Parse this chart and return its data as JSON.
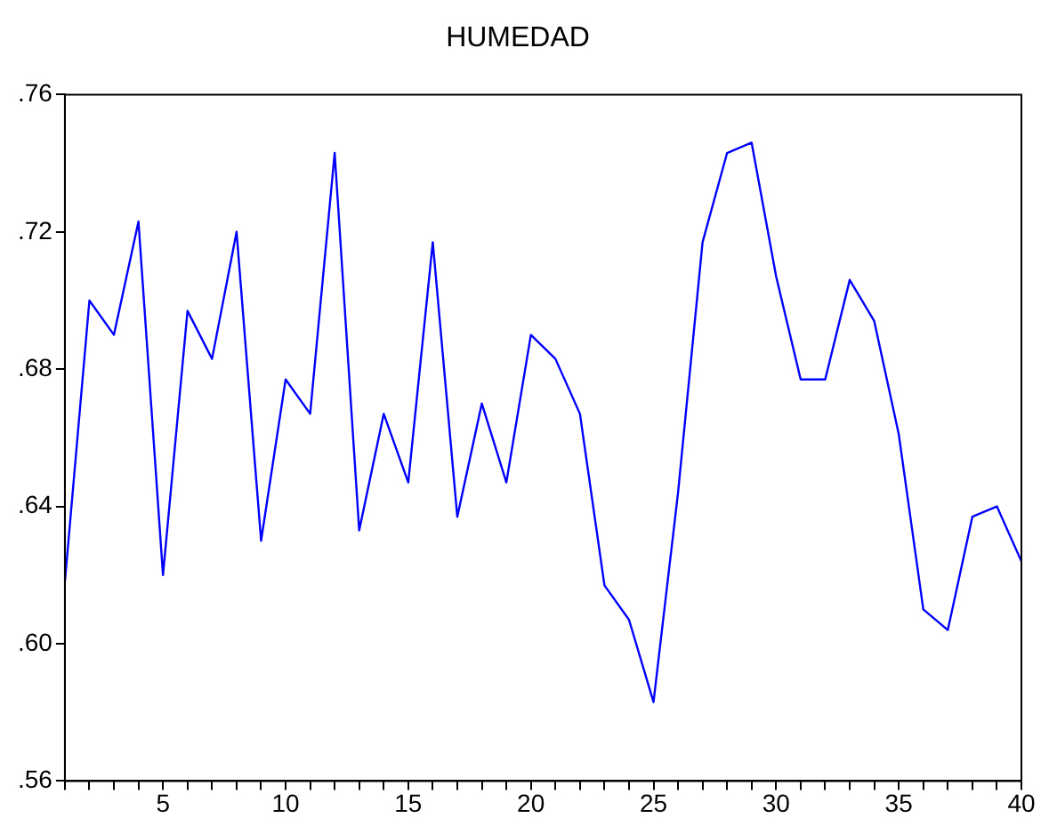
{
  "chart_data": {
    "type": "line",
    "title": "HUMEDAD",
    "x": [
      1,
      2,
      3,
      4,
      5,
      6,
      7,
      8,
      9,
      10,
      11,
      12,
      13,
      14,
      15,
      16,
      17,
      18,
      19,
      20,
      21,
      22,
      23,
      24,
      25,
      26,
      27,
      28,
      29,
      30,
      31,
      32,
      33,
      34,
      35,
      36,
      37,
      38,
      39,
      40
    ],
    "series": [
      {
        "color": "#0000ff",
        "values": [
          0.618,
          0.7,
          0.69,
          0.723,
          0.62,
          0.697,
          0.683,
          0.72,
          0.63,
          0.677,
          0.667,
          0.743,
          0.633,
          0.667,
          0.647,
          0.717,
          0.637,
          0.67,
          0.647,
          0.69,
          0.683,
          0.667,
          0.617,
          0.607,
          0.583,
          0.644,
          0.717,
          0.743,
          0.746,
          0.707,
          0.677,
          0.677,
          0.706,
          0.694,
          0.661,
          0.61,
          0.604,
          0.637,
          0.64,
          0.624
        ]
      }
    ],
    "xlim": [
      1,
      40
    ],
    "xticks": [
      {
        "value": 1,
        "label": null
      },
      {
        "value": 2,
        "label": null
      },
      {
        "value": 3,
        "label": null
      },
      {
        "value": 4,
        "label": null
      },
      5,
      {
        "value": 6,
        "label": null
      },
      {
        "value": 7,
        "label": null
      },
      {
        "value": 8,
        "label": null
      },
      {
        "value": 9,
        "label": null
      },
      10,
      {
        "value": 11,
        "label": null
      },
      {
        "value": 12,
        "label": null
      },
      {
        "value": 13,
        "label": null
      },
      {
        "value": 14,
        "label": null
      },
      15,
      {
        "value": 16,
        "label": null
      },
      {
        "value": 17,
        "label": null
      },
      {
        "value": 18,
        "label": null
      },
      {
        "value": 19,
        "label": null
      },
      20,
      {
        "value": 21,
        "label": null
      },
      {
        "value": 22,
        "label": null
      },
      {
        "value": 23,
        "label": null
      },
      {
        "value": 24,
        "label": null
      },
      25,
      {
        "value": 26,
        "label": null
      },
      {
        "value": 27,
        "label": null
      },
      {
        "value": 28,
        "label": null
      },
      {
        "value": 29,
        "label": null
      },
      30,
      {
        "value": 31,
        "label": null
      },
      {
        "value": 32,
        "label": null
      },
      {
        "value": 33,
        "label": null
      },
      {
        "value": 34,
        "label": null
      },
      35,
      {
        "value": 36,
        "label": null
      },
      {
        "value": 37,
        "label": null
      },
      {
        "value": 38,
        "label": null
      },
      {
        "value": 39,
        "label": null
      },
      40
    ],
    "ylim": [
      0.56,
      0.76
    ],
    "yticks": [
      {
        "value": 0.56,
        "label": ".56"
      },
      {
        "value": 0.6,
        "label": ".60"
      },
      {
        "value": 0.64,
        "label": ".64"
      },
      {
        "value": 0.68,
        "label": ".68"
      },
      {
        "value": 0.72,
        "label": ".72"
      },
      {
        "value": 0.76,
        "label": ".76"
      }
    ],
    "grid": false,
    "legend": false,
    "marker": "none",
    "line_style": "solid"
  }
}
